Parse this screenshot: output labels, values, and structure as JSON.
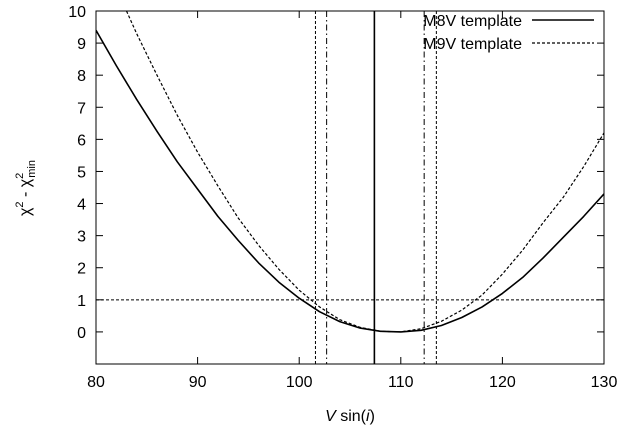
{
  "chart_data": {
    "type": "line",
    "xlabel": {
      "var": "V",
      "fn": " sin(",
      "arg": "i",
      "close": ")"
    },
    "ylabel": {
      "chi": "χ",
      "sup": "2",
      "minus": " - ",
      "chi2": "χ",
      "sup2": "2",
      "sub": "min"
    },
    "xlim": [
      80,
      130
    ],
    "ylim": [
      -1,
      10
    ],
    "xticks": [
      80,
      90,
      100,
      110,
      120,
      130
    ],
    "yticks": [
      0,
      1,
      2,
      3,
      4,
      5,
      6,
      7,
      8,
      9,
      10
    ],
    "legend_position": "top-right",
    "grid": false,
    "series": [
      {
        "name": "M8V template",
        "style": "solid",
        "x": [
          80,
          82,
          84,
          86,
          88,
          90,
          92,
          94,
          96,
          98,
          100,
          102,
          104,
          106,
          108,
          110,
          112,
          114,
          116,
          118,
          120,
          122,
          124,
          126,
          128,
          130
        ],
        "y": [
          9.4,
          8.3,
          7.25,
          6.25,
          5.3,
          4.45,
          3.6,
          2.85,
          2.15,
          1.55,
          1.05,
          0.63,
          0.32,
          0.12,
          0.02,
          0.0,
          0.05,
          0.2,
          0.45,
          0.78,
          1.2,
          1.7,
          2.3,
          2.95,
          3.6,
          4.3
        ]
      },
      {
        "name": "M9V template",
        "style": "dashed",
        "x": [
          83,
          84,
          86,
          88,
          90,
          92,
          94,
          96,
          98,
          100,
          102,
          104,
          106,
          108,
          110,
          112,
          114,
          116,
          118,
          120,
          122,
          124,
          126,
          128,
          130
        ],
        "y": [
          10.0,
          9.3,
          8.0,
          6.75,
          5.6,
          4.55,
          3.55,
          2.7,
          1.95,
          1.3,
          0.78,
          0.38,
          0.14,
          0.02,
          0.0,
          0.1,
          0.33,
          0.68,
          1.15,
          1.8,
          2.55,
          3.4,
          4.2,
          5.15,
          6.2
        ]
      }
    ],
    "reference_lines": [
      {
        "orientation": "horizontal",
        "value": 1,
        "style": "dashed"
      },
      {
        "orientation": "vertical",
        "value": 107.4,
        "style": "solid"
      },
      {
        "orientation": "vertical",
        "value": 101.6,
        "style": "dashed"
      },
      {
        "orientation": "vertical",
        "value": 113.5,
        "style": "dashed"
      },
      {
        "orientation": "vertical",
        "value": 102.7,
        "style": "dashdot"
      },
      {
        "orientation": "vertical",
        "value": 112.3,
        "style": "dashdot"
      }
    ]
  }
}
